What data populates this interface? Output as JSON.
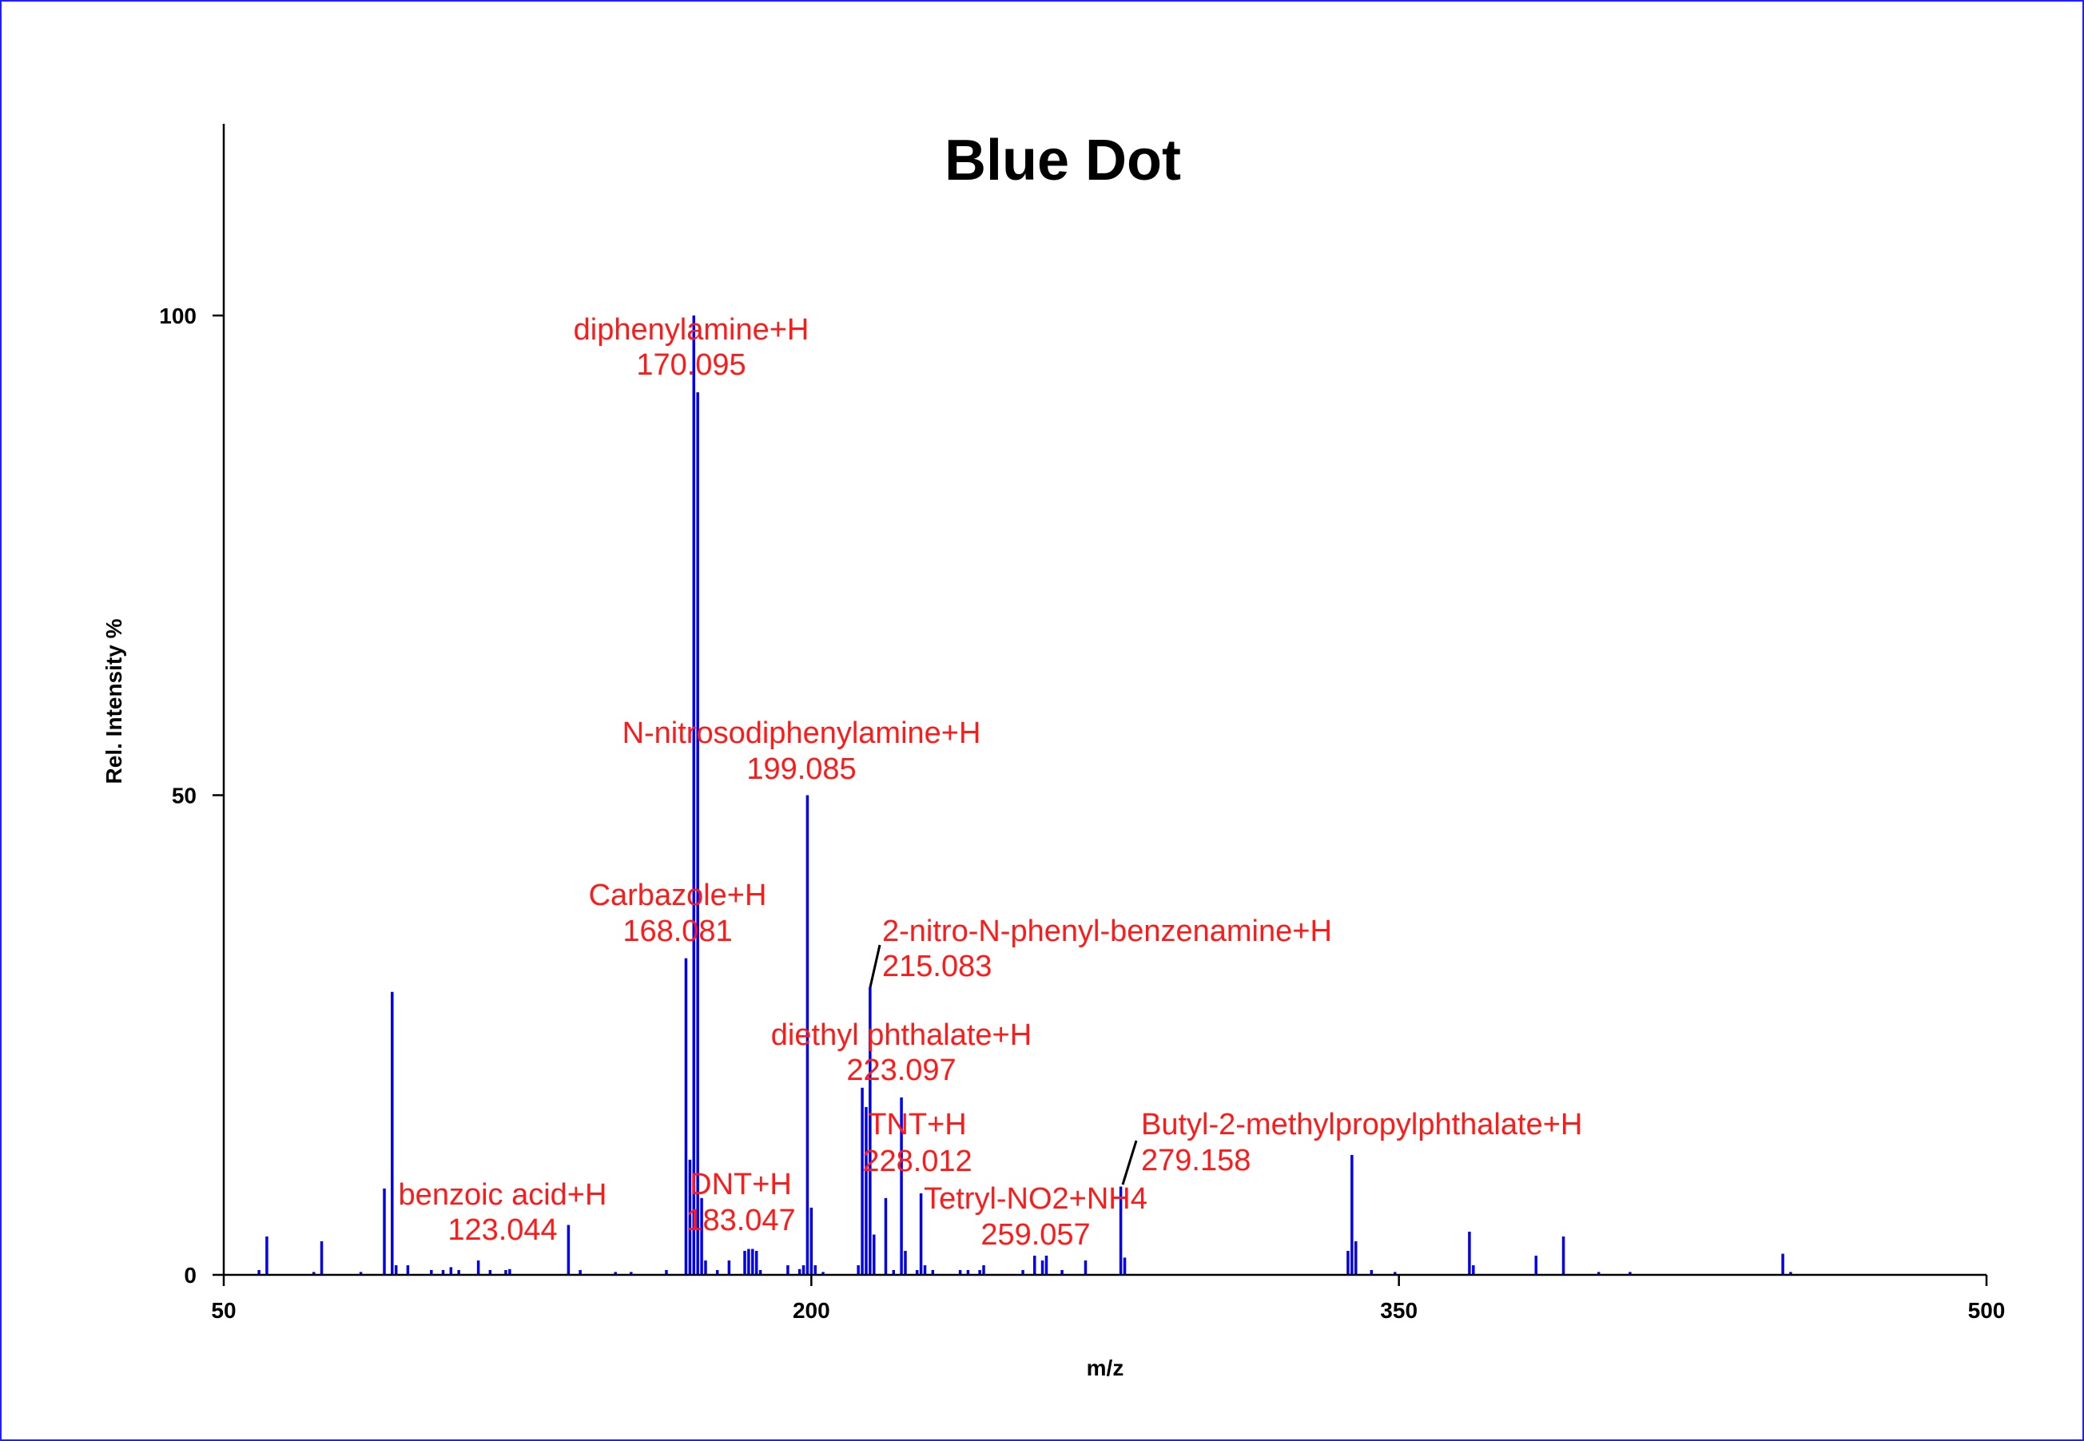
{
  "colors": {
    "peak": "#0000ee",
    "annotation": "#ff1a1a",
    "axis": "#000000",
    "frame": "#2020ff"
  },
  "chart_data": {
    "type": "bar",
    "title": "Blue Dot",
    "xlabel": "m/z",
    "ylabel": "Rel. Intensity %",
    "xlim": [
      50,
      500
    ],
    "ylim": [
      0,
      120
    ],
    "xticks": [
      50,
      200,
      350,
      500
    ],
    "yticks": [
      0,
      50,
      100
    ],
    "grid": false,
    "series": [
      {
        "peaks": [
          [
            59,
            0.5
          ],
          [
            61,
            4
          ],
          [
            73,
            0.3
          ],
          [
            75,
            3.5
          ],
          [
            85,
            0.3
          ],
          [
            91,
            9
          ],
          [
            93,
            29.5
          ],
          [
            94,
            1
          ],
          [
            97,
            1
          ],
          [
            103,
            0.5
          ],
          [
            106,
            0.5
          ],
          [
            108,
            0.8
          ],
          [
            110,
            0.5
          ],
          [
            115,
            1.5
          ],
          [
            118,
            0.5
          ],
          [
            122,
            0.5
          ],
          [
            123,
            0.6
          ],
          [
            138,
            5.2
          ],
          [
            141,
            0.5
          ],
          [
            150,
            0.3
          ],
          [
            154,
            0.3
          ],
          [
            163,
            0.5
          ],
          [
            168,
            33
          ],
          [
            169,
            12
          ],
          [
            170,
            100
          ],
          [
            171,
            92
          ],
          [
            172,
            8
          ],
          [
            173,
            1.5
          ],
          [
            176,
            0.5
          ],
          [
            179,
            1.5
          ],
          [
            183,
            2.5
          ],
          [
            184,
            2.7
          ],
          [
            185,
            2.7
          ],
          [
            186,
            2.5
          ],
          [
            187,
            0.5
          ],
          [
            194,
            1
          ],
          [
            197,
            0.6
          ],
          [
            198,
            1
          ],
          [
            199,
            50
          ],
          [
            200,
            7
          ],
          [
            201,
            1
          ],
          [
            203,
            0.3
          ],
          [
            212,
            1
          ],
          [
            213,
            19.5
          ],
          [
            214,
            17.5
          ],
          [
            215,
            30
          ],
          [
            216,
            4.2
          ],
          [
            219,
            8
          ],
          [
            221,
            0.5
          ],
          [
            223,
            18.5
          ],
          [
            224,
            2.5
          ],
          [
            227,
            0.5
          ],
          [
            228,
            8.5
          ],
          [
            229,
            1
          ],
          [
            231,
            0.5
          ],
          [
            238,
            0.5
          ],
          [
            240,
            0.5
          ],
          [
            243,
            0.5
          ],
          [
            244,
            1
          ],
          [
            254,
            0.5
          ],
          [
            257,
            2
          ],
          [
            259,
            1.5
          ],
          [
            260,
            2
          ],
          [
            264,
            0.5
          ],
          [
            270,
            1.5
          ],
          [
            279,
            9.2
          ],
          [
            280,
            1.8
          ],
          [
            337,
            2.5
          ],
          [
            338,
            12.5
          ],
          [
            339,
            3.5
          ],
          [
            343,
            0.5
          ],
          [
            349,
            0.3
          ],
          [
            368,
            4.5
          ],
          [
            369,
            1
          ],
          [
            385,
            2
          ],
          [
            392,
            4
          ],
          [
            401,
            0.3
          ],
          [
            409,
            0.3
          ],
          [
            448,
            2.2
          ],
          [
            450,
            0.3
          ]
        ]
      }
    ],
    "annotations": [
      {
        "label": "diphenylamine+H",
        "mz": "170.095"
      },
      {
        "label": "N-nitrosodiphenylamine+H",
        "mz": "199.085"
      },
      {
        "label": "Carbazole+H",
        "mz": "168.081"
      },
      {
        "label": "2-nitro-N-phenyl-benzenamine+H",
        "mz": "215.083"
      },
      {
        "label": "diethyl phthalate+H",
        "mz": "223.097"
      },
      {
        "label": "TNT+H",
        "mz": "228.012"
      },
      {
        "label": "Butyl-2-methylpropylphthalate+H",
        "mz": "279.158"
      },
      {
        "label": "Tetryl-NO2+NH4",
        "mz": "259.057"
      },
      {
        "label": "benzoic acid+H",
        "mz": "123.044"
      },
      {
        "label": "DNT+H",
        "mz": "183.047"
      }
    ]
  }
}
